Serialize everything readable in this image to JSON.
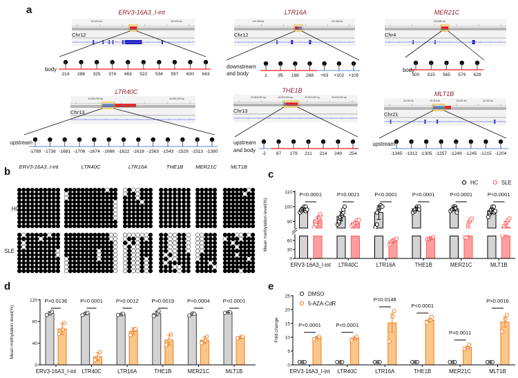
{
  "panel_labels": {
    "a": "a",
    "b": "b",
    "c": "c",
    "d": "d",
    "e": "e"
  },
  "colors": {
    "body": "#ff3b3b",
    "flank": "#8fb0e8",
    "locus_title": "#8b1c2c",
    "hc_bar": "#d3d3d3",
    "sle": "#ff5a5a",
    "sle_fill": "#ff9e9e",
    "aza": "#f07a1e",
    "aza_fill": "#fbc68a",
    "gene": "#1d1dbb"
  },
  "panel_a": {
    "loci": [
      {
        "name": "ERV3-16A3_I-int",
        "chr": "Chr12",
        "ruler": [
          "113,410 kb",
          "113,420 kb"
        ],
        "region_label": [
          "body"
        ],
        "cpg": [
          "214",
          "288",
          "325",
          "374",
          "463",
          "522",
          "534",
          "597",
          "600",
          "643"
        ],
        "cpg_region": "bbbbbbbbbb"
      },
      {
        "name": "LTR16A",
        "chr": "Chr12",
        "ruler": [
          "113,350 kb",
          "113,360 kb"
        ],
        "region_label": [
          "downstream",
          "and body"
        ],
        "cpg": [
          "1",
          "95",
          "188",
          "288",
          "+93",
          "+102",
          "+105"
        ],
        "cpg_region": "bbbbfff"
      },
      {
        "name": "MER21C",
        "chr": "Chr4",
        "ruler": [
          "165,380 kb"
        ],
        "region_label": [
          "body"
        ],
        "cpg": [
          "300",
          "515",
          "565",
          "579",
          "628"
        ],
        "cpg_region": "bbbbb"
      },
      {
        "name": "LTR40C",
        "chr": "Chr13",
        "ruler": [
          "43,550,000 bp",
          "43,551,000 bp"
        ],
        "region_label": [
          "upstream"
        ],
        "cpg": [
          "-1789",
          "-1736",
          "-1681",
          "-1706",
          "-1674",
          "-1666",
          "-1622",
          "-1618",
          "-1563",
          "-1543",
          "-1529",
          "-1513",
          "-1380"
        ],
        "cpg_region": "fffffffffffff"
      },
      {
        "name": "THE1B",
        "chr": "Chr13",
        "ruler": [
          "43,518,000 bp",
          "43,519,000 bp",
          "43,520,000 bp",
          "43,521,000 bp"
        ],
        "region_label": [
          "upstream",
          "and body"
        ],
        "cpg": [
          "-2",
          "87",
          "179",
          "211",
          "214",
          "249",
          "254"
        ],
        "cpg_region": "fbbbbbb"
      },
      {
        "name": "MLT1B",
        "chr": "Chr21",
        "ruler": [
          "42,016 kb",
          "42,018 kb",
          "42,020 kb",
          "42,022 kb"
        ],
        "region_label": [
          "upstream"
        ],
        "cpg": [
          "-1345",
          "-1313",
          "-1305",
          "-1257",
          "-1249",
          "-1245",
          "-1215",
          "-1204"
        ],
        "cpg_region": "ffffffff"
      }
    ]
  },
  "panel_b": {
    "row_labels": [
      "HC",
      "SLE"
    ],
    "loci": [
      {
        "name": "ERV3-16A3_I-int",
        "HC": [
          "xxxxxxxxxx",
          "xxxxxxxxxx",
          "xxxxxxxxxx",
          "xxxxxxxxxx",
          "xxxxxxxxxx",
          "xxxxxxxxxx",
          "xxxxxxxxxx",
          "xxxxxxxxxx",
          "xxxxxxxxxx",
          "xxxxxxxxxx"
        ],
        "SLE": [
          "xoxxxxxoxx",
          "xxxxxoxxxx",
          "xoxxxxxxxx",
          "xoxxxxxxxx",
          "xxxxxxxxxo",
          "xxxxxxxxxo",
          "xxxxxxxxxx",
          "xxxxxxxxxx",
          "xxxxxxxxxx",
          "xxxxxxxxxx"
        ]
      },
      {
        "name": "LTR40C",
        "HC": [
          "xxxxxxxxxxoxx",
          "oxxxxxxxxxxxx",
          "oxxxxxxxxxxxx",
          "xxxxxxxxxxxxo",
          "xxxxxxxxxxxxo",
          "xxxxxxxxxxxxo",
          "xxxxxxxxxxxxo",
          "xxxxxxxxxxxxo",
          "xxxxxxxxxxxxx",
          "xxxxxxxxxxxxx"
        ],
        "SLE": [
          "xxxxxxxxxxxoo",
          "xxxxxxxxxxxoo",
          "xxxxxxxxxxxxo",
          "xxxxxxxxxxxxo",
          "xxxxxxxxoxxxo",
          "xxxxxxxxoxxxo",
          "oxxxxxxxoxxxo",
          "oxxxxxxxxxxxo",
          "oxxxxxxxxxxxo",
          "oxxxxxxxxxxxo"
        ]
      },
      {
        "name": "LTR16A",
        "HC": [
          "oxooxxx",
          "oxxoxxx",
          "xxxoxxx",
          "xxxxoxx",
          "xxxxxxx",
          "xxxxxxx",
          "xxxxxxx",
          "xxxxxxx",
          "xxxxxxx",
          "xxxxxxx"
        ],
        "SLE": [
          "oooooox",
          "oxxoxox",
          "xoxoxxx",
          "oxooxxx",
          "oxooxxx",
          "oxooxxx",
          "oxooxox",
          "oxooxox",
          "oxooxox",
          "oxooxox"
        ]
      },
      {
        "name": "THE1B",
        "HC": [
          "xxxxxxx",
          "xxxxxxx",
          "xxxxxxx",
          "xxxxxxx",
          "xxxxxxx",
          "xxxxxxx",
          "xxxxxxx",
          "xxxxxxx",
          "xxxxxxx",
          "xxxxxxx"
        ],
        "SLE": [
          "xxooxxo",
          "xxooxxo",
          "xxooxxo",
          "xxooxxo",
          "xxooxxo",
          "xoxoxxx",
          "xxooxxx",
          "xoxxxxx",
          "xxxooxx",
          "xxxxoxx"
        ]
      },
      {
        "name": "MER21C",
        "HC": [
          "xxxxx",
          "xxxxx",
          "xxxxx",
          "xxxxx",
          "xxxxx",
          "xxxxx",
          "xxxxx",
          "xxxxx",
          "xxxxx",
          "xxxxx"
        ],
        "SLE": [
          "ooxxx",
          "ooxxx",
          "ooxxx",
          "ooxxx",
          "ooxxx",
          "oxxxx",
          "oxxxx",
          "xxxox",
          "xxxxo",
          "xxxxx"
        ]
      },
      {
        "name": "MLT1B",
        "HC": [
          "xxxxxxox",
          "xxxxxoxx",
          "xxxxxxxx",
          "xxxxxxxx",
          "xxxxxxxx",
          "xxxxxxxx",
          "xxxxxxxx",
          "xxxxxxxx",
          "xxxxxxxx",
          "xxxxxxxx"
        ],
        "SLE": [
          "xxxooxox",
          "oxxxoxxx",
          "xxoxxxxx",
          "xxxoxxxx",
          "xxxxxxxx",
          "xxxoxxxx",
          "xxxxxxox",
          "xxxxxxxx",
          "xxxxxxxx",
          "xxxxoxxx"
        ]
      }
    ]
  },
  "chart_data": [
    {
      "panel": "c",
      "type": "bar",
      "ylabel": "Mean methylation level(%)",
      "yticks": [
        "0",
        "30",
        "60",
        "90",
        "100",
        "110"
      ],
      "ylim_lower": [
        0,
        75
      ],
      "ylim_upper": [
        86,
        110
      ],
      "axis_break": true,
      "legend": [
        "HC",
        "SLE"
      ],
      "legend_position": "top-right",
      "categories": [
        "ERV3-16A3_I-int",
        "LTR40C",
        "LTR16A",
        "THE1B",
        "MER21C",
        "MLT1B"
      ],
      "pvalues": [
        "P<0.0001",
        "P=0.0021",
        "P<0.0001",
        "P<0.0001",
        "P<0.0001",
        "P<0.0001"
      ],
      "series": [
        {
          "name": "HC",
          "values": [
            98.2,
            93.5,
            96,
            98.5,
            98.5,
            97.3
          ],
          "points": [
            [
              96,
              97,
              98,
              98,
              99,
              99,
              100,
              100,
              97,
              98
            ],
            [
              88,
              89,
              90,
              92,
              93,
              94,
              95,
              96,
              98,
              100
            ],
            [
              86,
              88,
              96,
              98,
              99,
              100,
              101,
              100
            ],
            [
              96,
              97,
              98,
              99,
              100,
              100,
              98
            ],
            [
              97,
              98,
              98,
              99,
              100,
              100,
              99,
              97,
              96
            ],
            [
              93,
              95,
              96,
              97,
              98,
              99,
              100,
              100,
              96,
              97
            ]
          ]
        },
        {
          "name": "SLE",
          "values": [
            91.1,
            89.1,
            57.6,
            67.9,
            82.1,
            86.1
          ],
          "points": [
            [
              86,
              88,
              90,
              91,
              91,
              92,
              93,
              94,
              95
            ],
            [
              87,
              88,
              88,
              89,
              89,
              90,
              91,
              91
            ],
            [
              46,
              50,
              55,
              58,
              60,
              62,
              64,
              66
            ],
            [
              64,
              66,
              67,
              68,
              69,
              70,
              71
            ],
            [
              70,
              70,
              70,
              86,
              88,
              90,
              91,
              92
            ],
            [
              76,
              86,
              87,
              88,
              89,
              90,
              91,
              92
            ]
          ]
        }
      ]
    },
    {
      "panel": "d",
      "type": "bar",
      "ylabel": "Mean methylation level(%)",
      "yticks": [
        "0",
        "40",
        "80",
        "120"
      ],
      "ylim": [
        0,
        120
      ],
      "categories": [
        "ERV3-16A3_I-int",
        "LTR40C",
        "LTR16A",
        "THE1B",
        "MER21C",
        "MLT1B"
      ],
      "pvalues": [
        "P=0.0136",
        "P<0.0001",
        "P=0.0012",
        "P=0.0019",
        "P=0.0004",
        "P<0.0001"
      ],
      "series": [
        {
          "name": "DMSO",
          "values": [
            95,
            94.3,
            93,
            94.7,
            93.3,
            96.7
          ],
          "points": [
            [
              92,
              95,
              98
            ],
            [
              92,
              95,
              96
            ],
            [
              92,
              93,
              94
            ],
            [
              90,
              95,
              99
            ],
            [
              91,
              95,
              94
            ],
            [
              96,
              97,
              97
            ]
          ]
        },
        {
          "name": "5-AZA-CdR",
          "values": [
            66.3,
            15,
            62,
            46,
            45.7,
            50.7
          ],
          "points": [
            [
              57,
              65,
              77
            ],
            [
              9,
              13,
              23
            ],
            [
              55,
              65,
              66
            ],
            [
              37,
              45,
              56
            ],
            [
              40,
              45,
              52
            ],
            [
              49,
              51,
              52
            ]
          ]
        }
      ]
    },
    {
      "panel": "e",
      "type": "bar",
      "ylabel": "Fold change",
      "yticks": [
        "0",
        "5",
        "10",
        "15",
        "20",
        "25"
      ],
      "ylim": [
        0,
        25
      ],
      "legend": [
        "DMSO",
        "5-AZA-CdR"
      ],
      "legend_position": "top-left",
      "categories": [
        "ERV3-16A3_I-int",
        "LTR40C",
        "LTR16A",
        "THE1B",
        "MER21C",
        "MLT1B"
      ],
      "pvalues": [
        "P<0.0001",
        "P<0.0001",
        "P=0.0148",
        "P<0.0001",
        "P=0.0011",
        "P=0.0016"
      ],
      "series": [
        {
          "name": "DMSO",
          "values": [
            1,
            1,
            1,
            1,
            1,
            1
          ],
          "points": [
            [
              1,
              1,
              1
            ],
            [
              1,
              1,
              1
            ],
            [
              1,
              1,
              1
            ],
            [
              1,
              1,
              1
            ],
            [
              1,
              1,
              1
            ],
            [
              1,
              1,
              1
            ]
          ]
        },
        {
          "name": "5-AZA-CdR",
          "values": [
            9.8,
            9.6,
            15.2,
            16.2,
            6.3,
            15.5
          ],
          "points": [
            [
              9.3,
              9.8,
              10.2
            ],
            [
              8.9,
              9.6,
              10.2
            ],
            [
              8.5,
              17.5,
              19.5
            ],
            [
              15.3,
              16.1,
              17.3
            ],
            [
              5.8,
              5.9,
              7.3
            ],
            [
              12.0,
              16.5,
              18.0
            ]
          ]
        }
      ]
    }
  ]
}
